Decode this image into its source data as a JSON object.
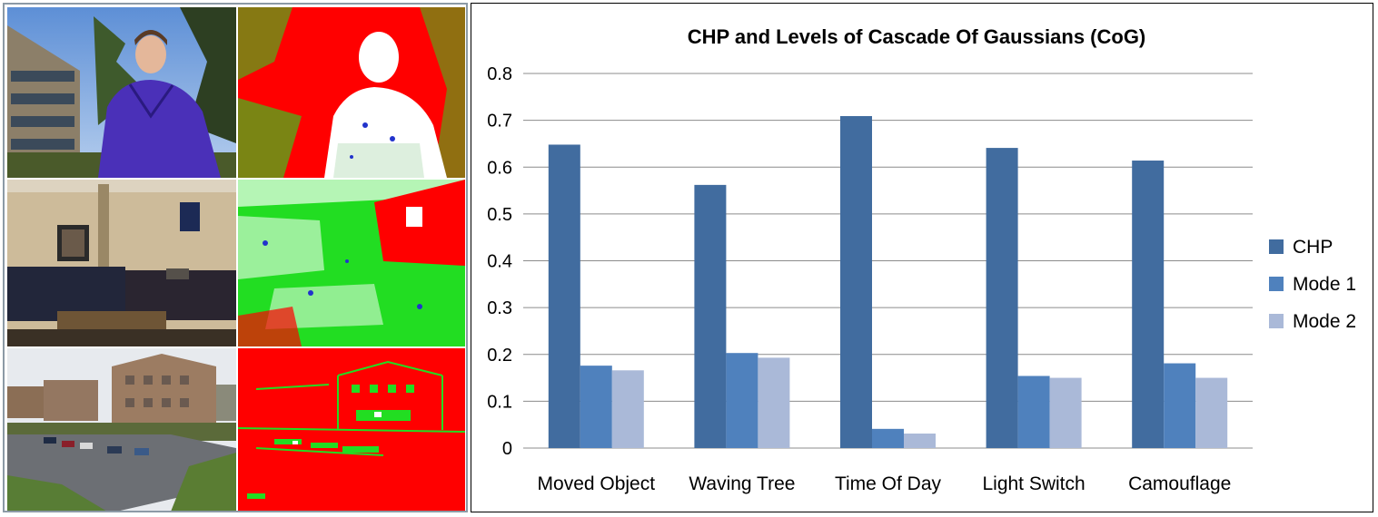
{
  "colors": {
    "chp": "#416c9f",
    "mode1": "#4f81bd",
    "mode2": "#aab9d8",
    "grid": "#8c8c8c",
    "mask_red": "#ff0000",
    "mask_green": "#22dd22",
    "mask_white": "#ffffff",
    "mask_blue": "#2233cc"
  },
  "images_panel": {
    "rows": [
      {
        "photo_icon": "person-outdoors-photo",
        "mask_icon": "person-mask-icon"
      },
      {
        "photo_icon": "living-room-photo",
        "mask_icon": "living-room-mask-icon"
      },
      {
        "photo_icon": "campus-building-photo",
        "mask_icon": "building-mask-icon"
      }
    ]
  },
  "chart_data": {
    "type": "bar",
    "title": "CHP and Levels of Cascade Of Gaussians (CoG)",
    "xlabel": "",
    "ylabel": "",
    "categories": [
      "Moved Object",
      "Waving Tree",
      "Time Of Day",
      "Light Switch",
      "Camouflage"
    ],
    "series": [
      {
        "name": "CHP",
        "values": [
          0.648,
          0.562,
          0.709,
          0.641,
          0.614
        ]
      },
      {
        "name": "Mode 1",
        "values": [
          0.176,
          0.203,
          0.041,
          0.154,
          0.181
        ]
      },
      {
        "name": "Mode 2",
        "values": [
          0.166,
          0.193,
          0.031,
          0.15,
          0.15
        ]
      }
    ],
    "ylim": [
      0,
      0.8
    ],
    "yticks": [
      "0",
      "0.1",
      "0.2",
      "0.3",
      "0.4",
      "0.5",
      "0.6",
      "0.7",
      "0.8"
    ],
    "grid": true,
    "legend": "right"
  }
}
